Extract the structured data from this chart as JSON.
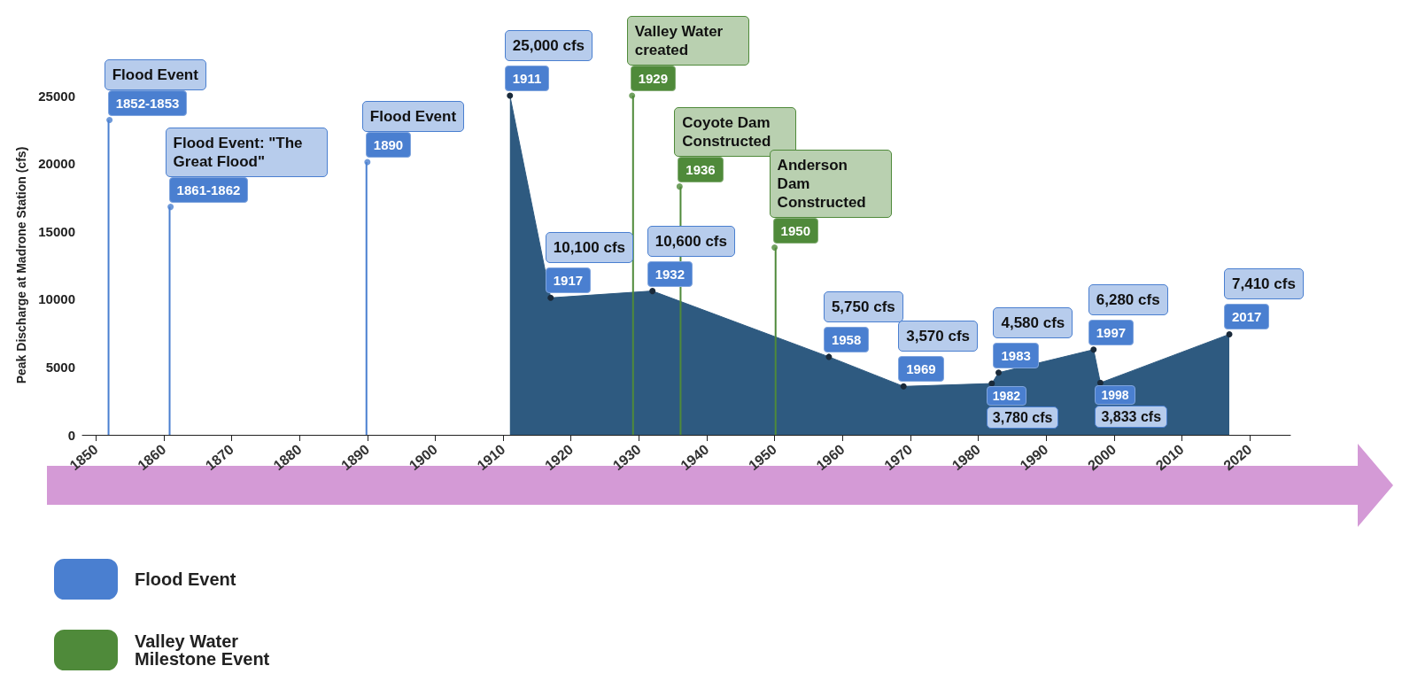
{
  "chart_data": {
    "type": "area",
    "ylabel": "Peak Discharge at Madrone Station (cfs)",
    "xlim": [
      1848,
      2026
    ],
    "xticks": [
      1850,
      1860,
      1870,
      1880,
      1890,
      1900,
      1910,
      1920,
      1930,
      1940,
      1950,
      1960,
      1970,
      1980,
      1990,
      2000,
      2010,
      2020
    ],
    "ylim": [
      0,
      25000
    ],
    "yticks": [
      0,
      5000,
      10000,
      15000,
      20000,
      25000
    ],
    "grid": false,
    "legend": "bottom left",
    "marker": "circle",
    "series": [
      {
        "color": "#2e5a80",
        "x": [
          1911,
          1917,
          1932,
          1958,
          1969,
          1982,
          1983,
          1997,
          1998,
          2017
        ],
        "values": [
          25000,
          10100,
          10600,
          5750,
          3570,
          3780,
          4580,
          6280,
          3833,
          7410
        ],
        "value_labels": [
          "25,000 cfs",
          "10,100 cfs",
          "10,600 cfs",
          "5,750 cfs",
          "3,570 cfs",
          "3,780 cfs",
          "4,580 cfs",
          "6,280 cfs",
          "3,833 cfs",
          "7,410 cfs"
        ]
      },
      {
        "type": "lollipop",
        "name": "Flood Event",
        "color": "#4a7fd0",
        "x": [
          1852,
          1861,
          1890
        ],
        "values": [
          23200,
          16800,
          20100
        ]
      },
      {
        "type": "lollipop",
        "name": "Valley Water Milestone Event",
        "color": "#4f8a3a",
        "x": [
          1929,
          1936,
          1950
        ],
        "values": [
          25000,
          18300,
          13800
        ]
      }
    ],
    "annotations": [
      {
        "text": "Flood Event",
        "x": 1852,
        "y": 23200
      },
      {
        "text": "1852-1853",
        "x": 1852,
        "y": 23200
      },
      {
        "text": "Flood Event: \"The Great Flood\"",
        "x": 1861,
        "y": 16800
      },
      {
        "text": "1861-1862",
        "x": 1861,
        "y": 16800
      },
      {
        "text": "Flood Event",
        "x": 1890,
        "y": 20100
      },
      {
        "text": "1890",
        "x": 1890,
        "y": 20100
      },
      {
        "text": "Valley Water created",
        "x": 1929,
        "y": 25000
      },
      {
        "text": "1929",
        "x": 1929,
        "y": 25000
      },
      {
        "text": "Coyote Dam Constructed",
        "x": 1936,
        "y": 18300
      },
      {
        "text": "1936",
        "x": 1936,
        "y": 18300
      },
      {
        "text": "Anderson Dam Constructed",
        "x": 1950,
        "y": 13800
      },
      {
        "text": "1950",
        "x": 1950,
        "y": 13800
      },
      {
        "text": "1911",
        "x": 1911,
        "y": 25000
      },
      {
        "text": "1917",
        "x": 1917,
        "y": 10100
      },
      {
        "text": "1932",
        "x": 1932,
        "y": 10600
      },
      {
        "text": "1958",
        "x": 1958,
        "y": 5750
      },
      {
        "text": "1969",
        "x": 1969,
        "y": 3570
      },
      {
        "text": "1982",
        "x": 1982,
        "y": 3780
      },
      {
        "text": "1983",
        "x": 1983,
        "y": 4580
      },
      {
        "text": "1997",
        "x": 1997,
        "y": 6280
      },
      {
        "text": "1998",
        "x": 1998,
        "y": 3833
      },
      {
        "text": "2017",
        "x": 2017,
        "y": 7410
      }
    ]
  }
}
